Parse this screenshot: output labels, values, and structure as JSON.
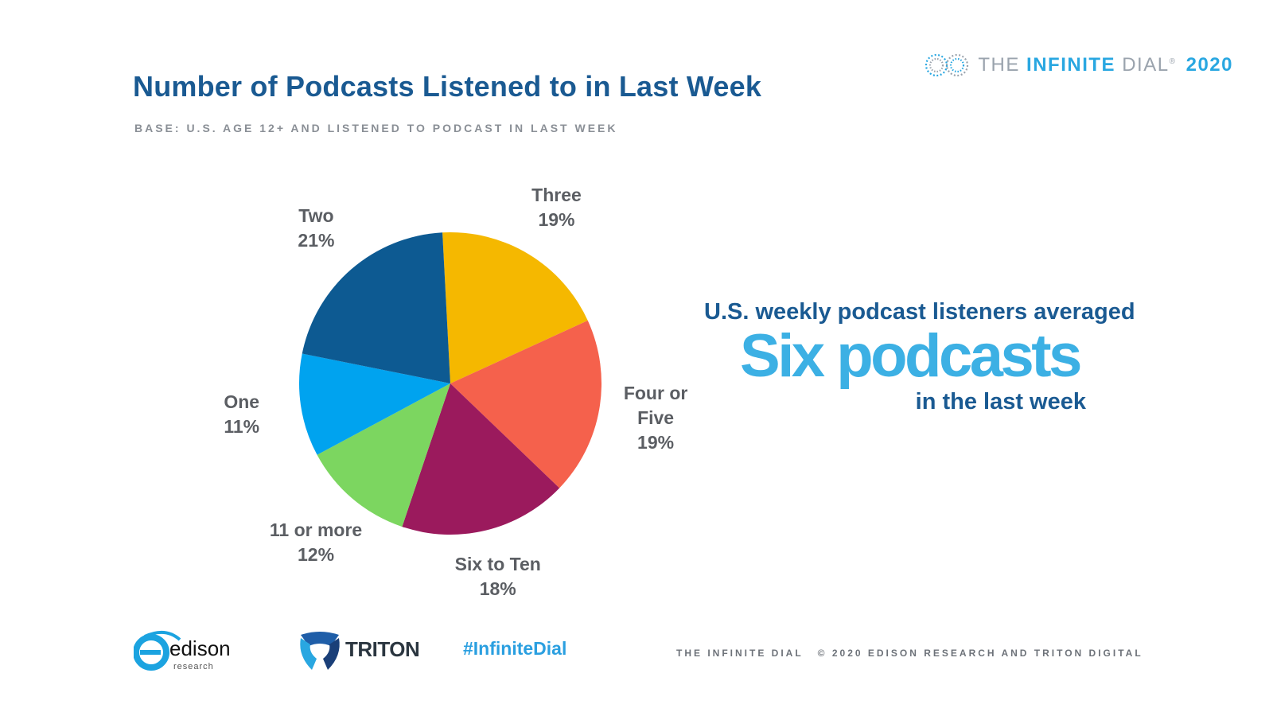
{
  "header": {
    "title": "Number of Podcasts Listened to in Last Week",
    "subtitle": "BASE: U.S. AGE 12+ AND LISTENED TO PODCAST IN LAST WEEK"
  },
  "brand": {
    "prefix": "THE",
    "bold": "INFINITE",
    "suffix": "DIAL",
    "mark": "®",
    "year": "2020"
  },
  "chart_data": {
    "type": "pie",
    "title": "Number of Podcasts Listened to in Last Week",
    "slices": [
      {
        "label_lines": [
          "Three",
          "19%"
        ],
        "name": "Three",
        "value": 19,
        "color": "#f5b800"
      },
      {
        "label_lines": [
          "Four or",
          "Five",
          "19%"
        ],
        "name": "Four or Five",
        "value": 19,
        "color": "#f5614c"
      },
      {
        "label_lines": [
          "Six to Ten",
          "18%"
        ],
        "name": "Six to Ten",
        "value": 18,
        "color": "#9b1a5d"
      },
      {
        "label_lines": [
          "11 or more",
          "12%"
        ],
        "name": "11 or more",
        "value": 12,
        "color": "#7cd660"
      },
      {
        "label_lines": [
          "One",
          "11%"
        ],
        "name": "One",
        "value": 11,
        "color": "#00a3ef"
      },
      {
        "label_lines": [
          "Two",
          "21%"
        ],
        "name": "Two",
        "value": 21,
        "color": "#0d5a92"
      }
    ]
  },
  "callout": {
    "line1": "U.S. weekly podcast listeners averaged",
    "line2": "Six podcasts",
    "line3": "in the last week"
  },
  "footer": {
    "edison": "edison",
    "edison_sub": "research",
    "triton": "TRITON",
    "hashtag": "#InfiniteDial",
    "copyright_left": "THE INFINITE DIAL",
    "copyright_right": "© 2020 EDISON RESEARCH AND TRITON DIGITAL"
  }
}
